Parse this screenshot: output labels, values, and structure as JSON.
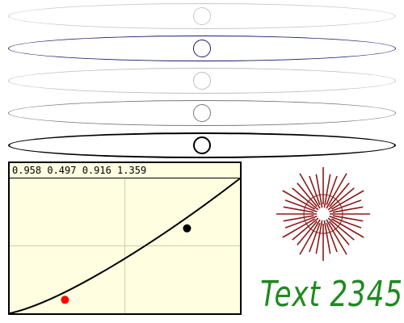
{
  "sliders": [
    {
      "id": "slider-1",
      "stroke": "#c8c8c8",
      "knob_stroke": "#c8c8c8",
      "value": 0.5
    },
    {
      "id": "slider-2",
      "stroke": "#1a1a6e",
      "knob_stroke": "#1a1a6e",
      "value": 0.5
    },
    {
      "id": "slider-3",
      "stroke": "#bdbdbd",
      "knob_stroke": "#bdbdbd",
      "value": 0.5
    },
    {
      "id": "slider-4",
      "stroke": "#777777",
      "knob_stroke": "#777777",
      "value": 0.5
    },
    {
      "id": "slider-5",
      "stroke": "#000000",
      "knob_stroke": "#000000",
      "value": 0.5
    }
  ],
  "plot": {
    "readout": "0.958 0.497 0.916 1.359",
    "background": "#fffee0",
    "grid_color": "#cfcfaa",
    "curve_color": "#000000",
    "chart_data": {
      "type": "line",
      "xlim": [
        0,
        1
      ],
      "ylim": [
        0,
        1
      ],
      "control_points": [
        {
          "x": 0.24,
          "y": 0.1,
          "color": "#ff0000"
        },
        {
          "x": 0.77,
          "y": 0.63,
          "color": "#000000"
        }
      ]
    }
  },
  "sunburst": {
    "color": "#8b1a1a",
    "ray_count": 36
  },
  "sample_text": {
    "label": "Text 2345",
    "color": "#1f8a1f"
  }
}
